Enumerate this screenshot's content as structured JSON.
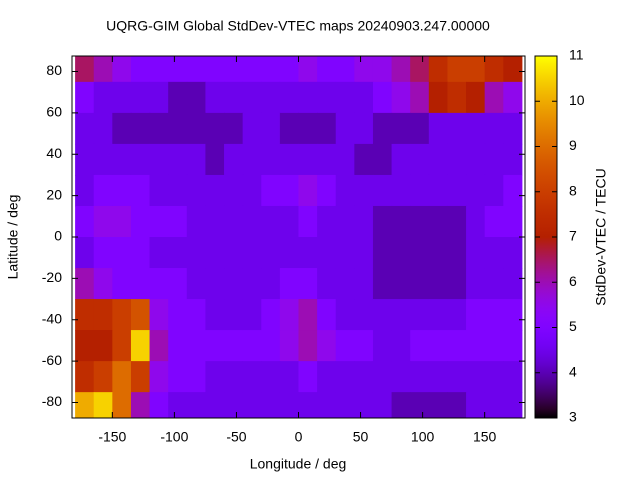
{
  "chart_data": {
    "type": "heatmap",
    "title": "UQRG-GIM Global StdDev-VTEC maps 20240903.247.00000",
    "x_label": "Longitude / deg",
    "y_label": "Latitude / deg",
    "z_label": "StdDev-VTEC / TECU",
    "palette": "gnuplot",
    "x": [
      -172.5,
      -157.5,
      -142.5,
      -127.5,
      -112.5,
      -97.5,
      -82.5,
      -67.5,
      -52.5,
      -37.5,
      -22.5,
      -7.5,
      7.5,
      22.5,
      37.5,
      52.5,
      67.5,
      82.5,
      97.5,
      112.5,
      127.5,
      142.5,
      157.5,
      172.5
    ],
    "y": [
      82.5,
      67.5,
      52.5,
      37.5,
      22.5,
      7.5,
      -7.5,
      -22.5,
      -37.5,
      -52.5,
      -67.5,
      -82.5
    ],
    "z": [
      [
        6.5,
        6,
        5.5,
        5,
        5,
        5,
        5,
        5,
        5,
        5,
        5,
        5,
        5.5,
        5,
        5,
        5.5,
        5.5,
        6,
        6.5,
        7.5,
        8,
        8,
        7.5,
        7
      ],
      [
        5,
        4.5,
        4.5,
        4.5,
        4.5,
        4,
        4,
        4.5,
        4.5,
        4.5,
        4.5,
        4.5,
        4.5,
        4.5,
        4.5,
        4.5,
        5,
        5.5,
        6,
        7,
        7.5,
        7,
        6,
        5.5
      ],
      [
        4.5,
        4.5,
        4,
        4,
        4,
        4,
        4,
        4,
        4,
        4.5,
        4.5,
        4,
        4,
        4,
        4.5,
        4.5,
        4,
        4,
        4,
        4.5,
        4.5,
        4.5,
        4.5,
        4.5
      ],
      [
        4.5,
        4.5,
        4.5,
        4.5,
        4.5,
        4.5,
        4.5,
        4,
        4.5,
        4.5,
        4.5,
        4.5,
        4.5,
        4.5,
        4.5,
        4,
        4,
        4.5,
        4.5,
        4.5,
        4.5,
        4.5,
        4.5,
        4.5
      ],
      [
        4.5,
        5,
        5,
        5,
        4.5,
        4.5,
        4.5,
        4.5,
        4.5,
        4.5,
        5,
        5,
        5.5,
        5,
        4.5,
        4.5,
        4.5,
        4.5,
        4.5,
        4.5,
        4.5,
        4.5,
        4.5,
        5
      ],
      [
        5,
        5.5,
        5.5,
        5,
        5,
        5,
        4.5,
        4.5,
        4.5,
        4.5,
        4.5,
        4.5,
        5,
        4.5,
        4.5,
        4.5,
        4,
        4,
        4,
        4,
        4,
        4.5,
        5,
        5
      ],
      [
        4.5,
        5,
        5,
        5,
        4.5,
        4.5,
        4.5,
        4.5,
        4.5,
        4.5,
        4.5,
        4.5,
        4.5,
        4.5,
        4.5,
        4.5,
        4,
        4,
        4,
        4,
        4,
        4.5,
        4.5,
        4.5
      ],
      [
        6,
        5.5,
        5,
        5,
        5,
        5,
        4.5,
        4.5,
        4.5,
        4.5,
        4.5,
        5,
        5,
        4.5,
        4.5,
        4.5,
        4,
        4,
        4,
        4,
        4,
        4.5,
        4.5,
        4.5
      ],
      [
        7.5,
        7.5,
        8,
        8.5,
        5.5,
        5,
        5,
        4.5,
        4.5,
        4.5,
        5,
        5.5,
        6,
        5,
        4.5,
        4.5,
        4.5,
        4.5,
        4.5,
        4.5,
        4.5,
        5,
        5,
        5
      ],
      [
        7,
        7,
        8,
        10.5,
        6,
        5,
        5,
        5,
        5,
        5,
        5,
        5.5,
        6,
        5.5,
        5,
        5,
        4.5,
        4.5,
        5,
        5,
        5,
        5,
        5,
        5
      ],
      [
        7.5,
        8,
        9,
        8,
        5.5,
        5,
        5,
        4.5,
        4.5,
        4.5,
        4.5,
        4.5,
        5,
        4.5,
        4.5,
        4.5,
        4.5,
        4.5,
        4.5,
        4.5,
        4.5,
        4.5,
        4.5,
        4.5
      ],
      [
        10,
        10.5,
        9,
        6,
        5,
        4.5,
        4.5,
        4.5,
        4.5,
        4.5,
        4.5,
        4.5,
        4.5,
        4.5,
        4.5,
        4.5,
        4.5,
        4,
        4,
        4,
        4,
        4.5,
        4.5,
        4.5
      ]
    ],
    "xlim": [
      -182.5,
      182.5
    ],
    "ylim": [
      -87.5,
      87.5
    ],
    "zlim": [
      3,
      11
    ],
    "xticks": [
      -150,
      -100,
      -50,
      0,
      50,
      100,
      150
    ],
    "yticks": [
      -80,
      -60,
      -40,
      -20,
      0,
      20,
      40,
      60,
      80
    ],
    "zticks": [
      3,
      4,
      5,
      6,
      7,
      8,
      9,
      10,
      11
    ]
  }
}
